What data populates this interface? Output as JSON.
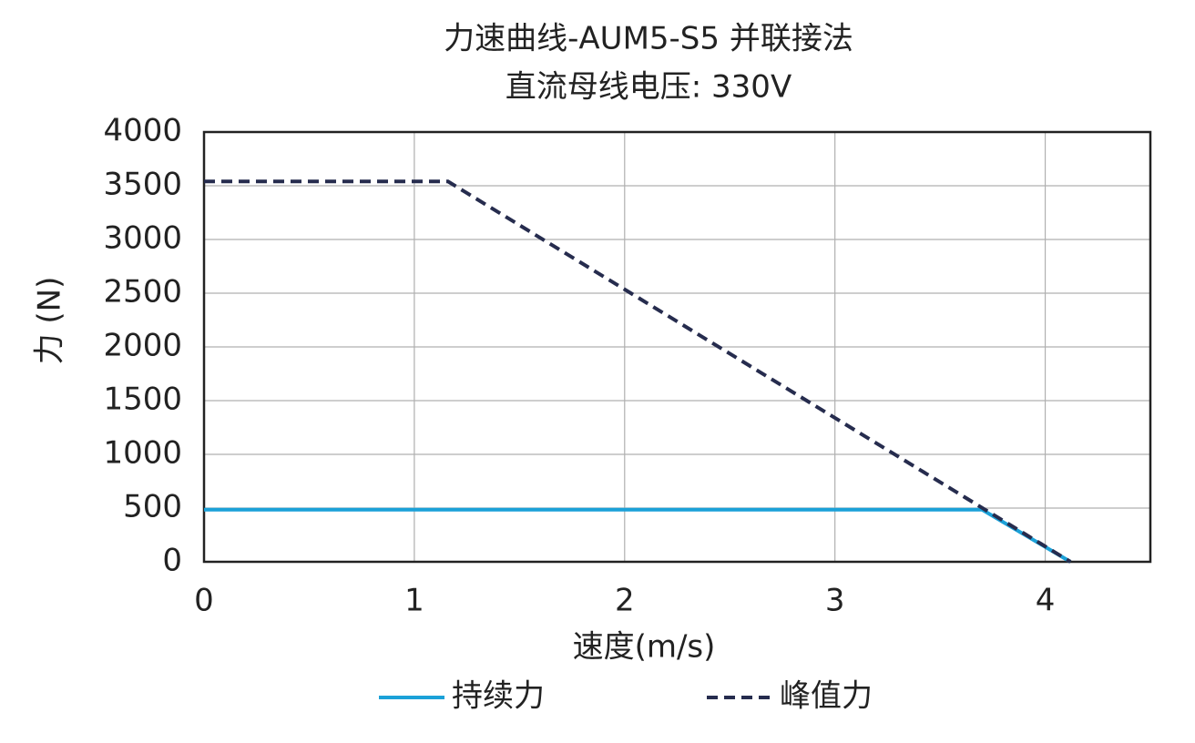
{
  "chart_data": {
    "type": "line",
    "title": "力速曲线-AUM5-S5 并联接法",
    "subtitle": "直流母线电压: 330V",
    "x_label": "速度(m/s)",
    "y_label": "力 (N)",
    "xlim": [
      0,
      4.5
    ],
    "xticks": [
      0,
      1,
      2,
      3,
      4
    ],
    "ylim": [
      0,
      4000
    ],
    "yticks": [
      0,
      500,
      1000,
      1500,
      2000,
      2500,
      3000,
      3500,
      4000
    ],
    "grid": true,
    "legend": "bottom",
    "series": [
      {
        "name": "持续力",
        "color": "#1ba1d8",
        "line_style": "solid",
        "x": [
          0,
          3.7,
          4.12
        ],
        "values": [
          485,
          485,
          0
        ]
      },
      {
        "name": "峰值力",
        "color": "#262c4e",
        "line_style": "dashed",
        "x": [
          0,
          1.16,
          4.12
        ],
        "values": [
          3540,
          3540,
          0
        ]
      }
    ]
  }
}
